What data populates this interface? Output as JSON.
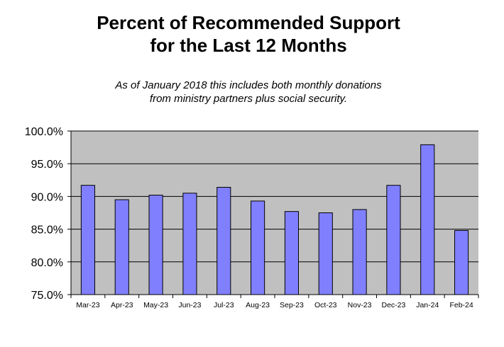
{
  "chart_data": {
    "type": "bar",
    "title": [
      "Percent of Recommended Support",
      "for the Last 12 Months"
    ],
    "subtitle": [
      "As of January 2018 this includes both monthly donations",
      "from ministry partners plus social security."
    ],
    "xlabel": "",
    "ylabel": "",
    "categories": [
      "Mar-23",
      "Apr-23",
      "May-23",
      "Jun-23",
      "Jul-23",
      "Aug-23",
      "Sep-23",
      "Oct-23",
      "Nov-23",
      "Dec-23",
      "Jan-24",
      "Feb-24"
    ],
    "values": [
      91.7,
      89.5,
      90.2,
      90.5,
      91.4,
      89.3,
      87.7,
      87.5,
      88.0,
      91.7,
      97.9,
      84.8
    ],
    "ylim": [
      75,
      100
    ],
    "yticks": [
      75,
      80,
      85,
      90,
      95,
      100
    ],
    "ytick_labels": [
      "75.0%",
      "80.0%",
      "85.0%",
      "90.0%",
      "95.0%",
      "100.0%"
    ],
    "grid": "horizontal",
    "legend": "none",
    "colors": {
      "bar_fill": "#8080ff",
      "bar_stroke": "#000000",
      "plot_background": "#c0c0c0",
      "gridline": "#000000"
    }
  }
}
